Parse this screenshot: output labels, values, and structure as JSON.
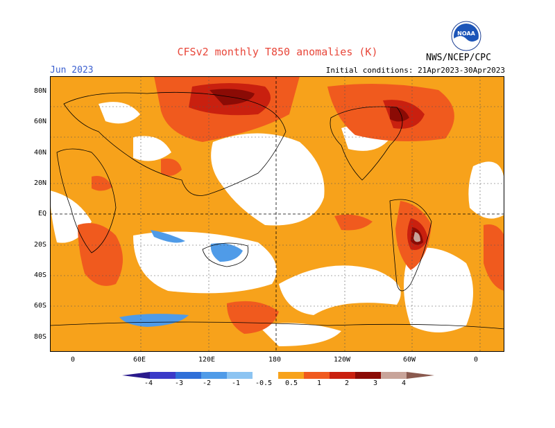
{
  "header": {
    "title": "CFSv2 monthly T850 anomalies (K)",
    "month": "Jun 2023",
    "init_conditions": "Initial conditions: 21Apr2023-30Apr2023",
    "agency": "NWS/NCEP/CPC",
    "logo_text": "NOAA"
  },
  "axes": {
    "lat_labels": [
      "80N",
      "60N",
      "40N",
      "20N",
      "EQ",
      "20S",
      "40S",
      "60S",
      "80S"
    ],
    "lon_labels": [
      "0",
      "60E",
      "120E",
      "180",
      "120W",
      "60W",
      "0"
    ]
  },
  "colorbar": {
    "labels": [
      "-4",
      "-3",
      "-2",
      "-1",
      "-0.5",
      "0.5",
      "1",
      "2",
      "3",
      "4"
    ],
    "colors": [
      "#2a1a8c",
      "#3b3ac8",
      "#2f6fd8",
      "#4f9be8",
      "#8cc4f2",
      "#ffffff",
      "#f7a21b",
      "#f05a1e",
      "#c9200f",
      "#8b0b05",
      "#c8a49a",
      "#8a5a4f"
    ]
  }
}
